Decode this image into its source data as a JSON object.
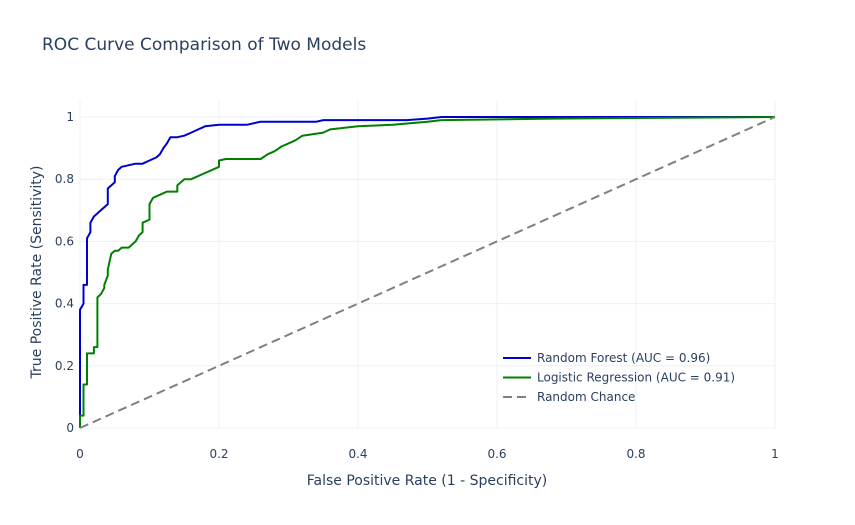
{
  "chart_data": {
    "type": "line",
    "title": "ROC Curve Comparison of Two Models",
    "xlabel": "False Positive Rate (1 - Specificity)",
    "ylabel": "True Positive Rate (Sensitivity)",
    "xlim": [
      0,
      1
    ],
    "ylim": [
      0,
      1
    ],
    "x_ticks": [
      0,
      0.2,
      0.4,
      0.6,
      0.8,
      1
    ],
    "y_ticks": [
      0,
      0.2,
      0.4,
      0.6,
      0.8,
      1
    ],
    "x_tick_labels": [
      "0",
      "0.2",
      "0.4",
      "0.6",
      "0.8",
      "1"
    ],
    "y_tick_labels": [
      "0",
      "0.2",
      "0.4",
      "0.6",
      "0.8",
      "1"
    ],
    "grid": true,
    "legend_position": "bottom-right",
    "series": [
      {
        "name": "Random Forest (AUC = 0.96)",
        "color": "#0000cd",
        "dash": "solid",
        "x": [
          0,
          0,
          0.005,
          0.005,
          0.01,
          0.01,
          0.015,
          0.015,
          0.02,
          0.025,
          0.03,
          0.035,
          0.04,
          0.04,
          0.045,
          0.05,
          0.05,
          0.055,
          0.06,
          0.07,
          0.08,
          0.09,
          0.1,
          0.11,
          0.115,
          0.12,
          0.125,
          0.13,
          0.14,
          0.15,
          0.16,
          0.17,
          0.175,
          0.18,
          0.2,
          0.24,
          0.26,
          0.3,
          0.34,
          0.35,
          0.4,
          0.47,
          0.5,
          0.52,
          0.6,
          0.68,
          1
        ],
        "y": [
          0,
          0.38,
          0.4,
          0.46,
          0.46,
          0.61,
          0.63,
          0.66,
          0.68,
          0.69,
          0.7,
          0.71,
          0.72,
          0.77,
          0.78,
          0.79,
          0.81,
          0.83,
          0.84,
          0.845,
          0.85,
          0.85,
          0.86,
          0.87,
          0.88,
          0.9,
          0.915,
          0.935,
          0.935,
          0.94,
          0.95,
          0.96,
          0.965,
          0.97,
          0.975,
          0.975,
          0.985,
          0.985,
          0.985,
          0.99,
          0.99,
          0.99,
          0.995,
          1,
          1,
          1,
          1
        ]
      },
      {
        "name": "Logistic Regression (AUC = 0.91)",
        "color": "#008000",
        "dash": "solid",
        "x": [
          0,
          0,
          0.005,
          0.005,
          0.01,
          0.01,
          0.02,
          0.02,
          0.025,
          0.025,
          0.03,
          0.035,
          0.035,
          0.04,
          0.04,
          0.045,
          0.05,
          0.055,
          0.06,
          0.07,
          0.075,
          0.08,
          0.085,
          0.09,
          0.09,
          0.1,
          0.1,
          0.105,
          0.11,
          0.115,
          0.12,
          0.125,
          0.14,
          0.14,
          0.15,
          0.16,
          0.17,
          0.18,
          0.19,
          0.2,
          0.2,
          0.21,
          0.26,
          0.27,
          0.28,
          0.29,
          0.3,
          0.31,
          0.32,
          0.35,
          0.36,
          0.4,
          0.45,
          0.5,
          0.52,
          0.68,
          1
        ],
        "y": [
          0,
          0.04,
          0.04,
          0.14,
          0.14,
          0.24,
          0.24,
          0.26,
          0.26,
          0.42,
          0.43,
          0.45,
          0.46,
          0.49,
          0.51,
          0.56,
          0.57,
          0.57,
          0.58,
          0.58,
          0.59,
          0.6,
          0.62,
          0.63,
          0.66,
          0.67,
          0.72,
          0.74,
          0.745,
          0.75,
          0.755,
          0.76,
          0.76,
          0.78,
          0.8,
          0.8,
          0.81,
          0.82,
          0.83,
          0.84,
          0.86,
          0.865,
          0.865,
          0.88,
          0.89,
          0.905,
          0.915,
          0.925,
          0.94,
          0.95,
          0.96,
          0.97,
          0.975,
          0.985,
          0.99,
          0.995,
          1
        ]
      },
      {
        "name": "Random Chance",
        "color": "#808080",
        "dash": "dash",
        "x": [
          0,
          1
        ],
        "y": [
          0,
          1
        ]
      }
    ]
  }
}
